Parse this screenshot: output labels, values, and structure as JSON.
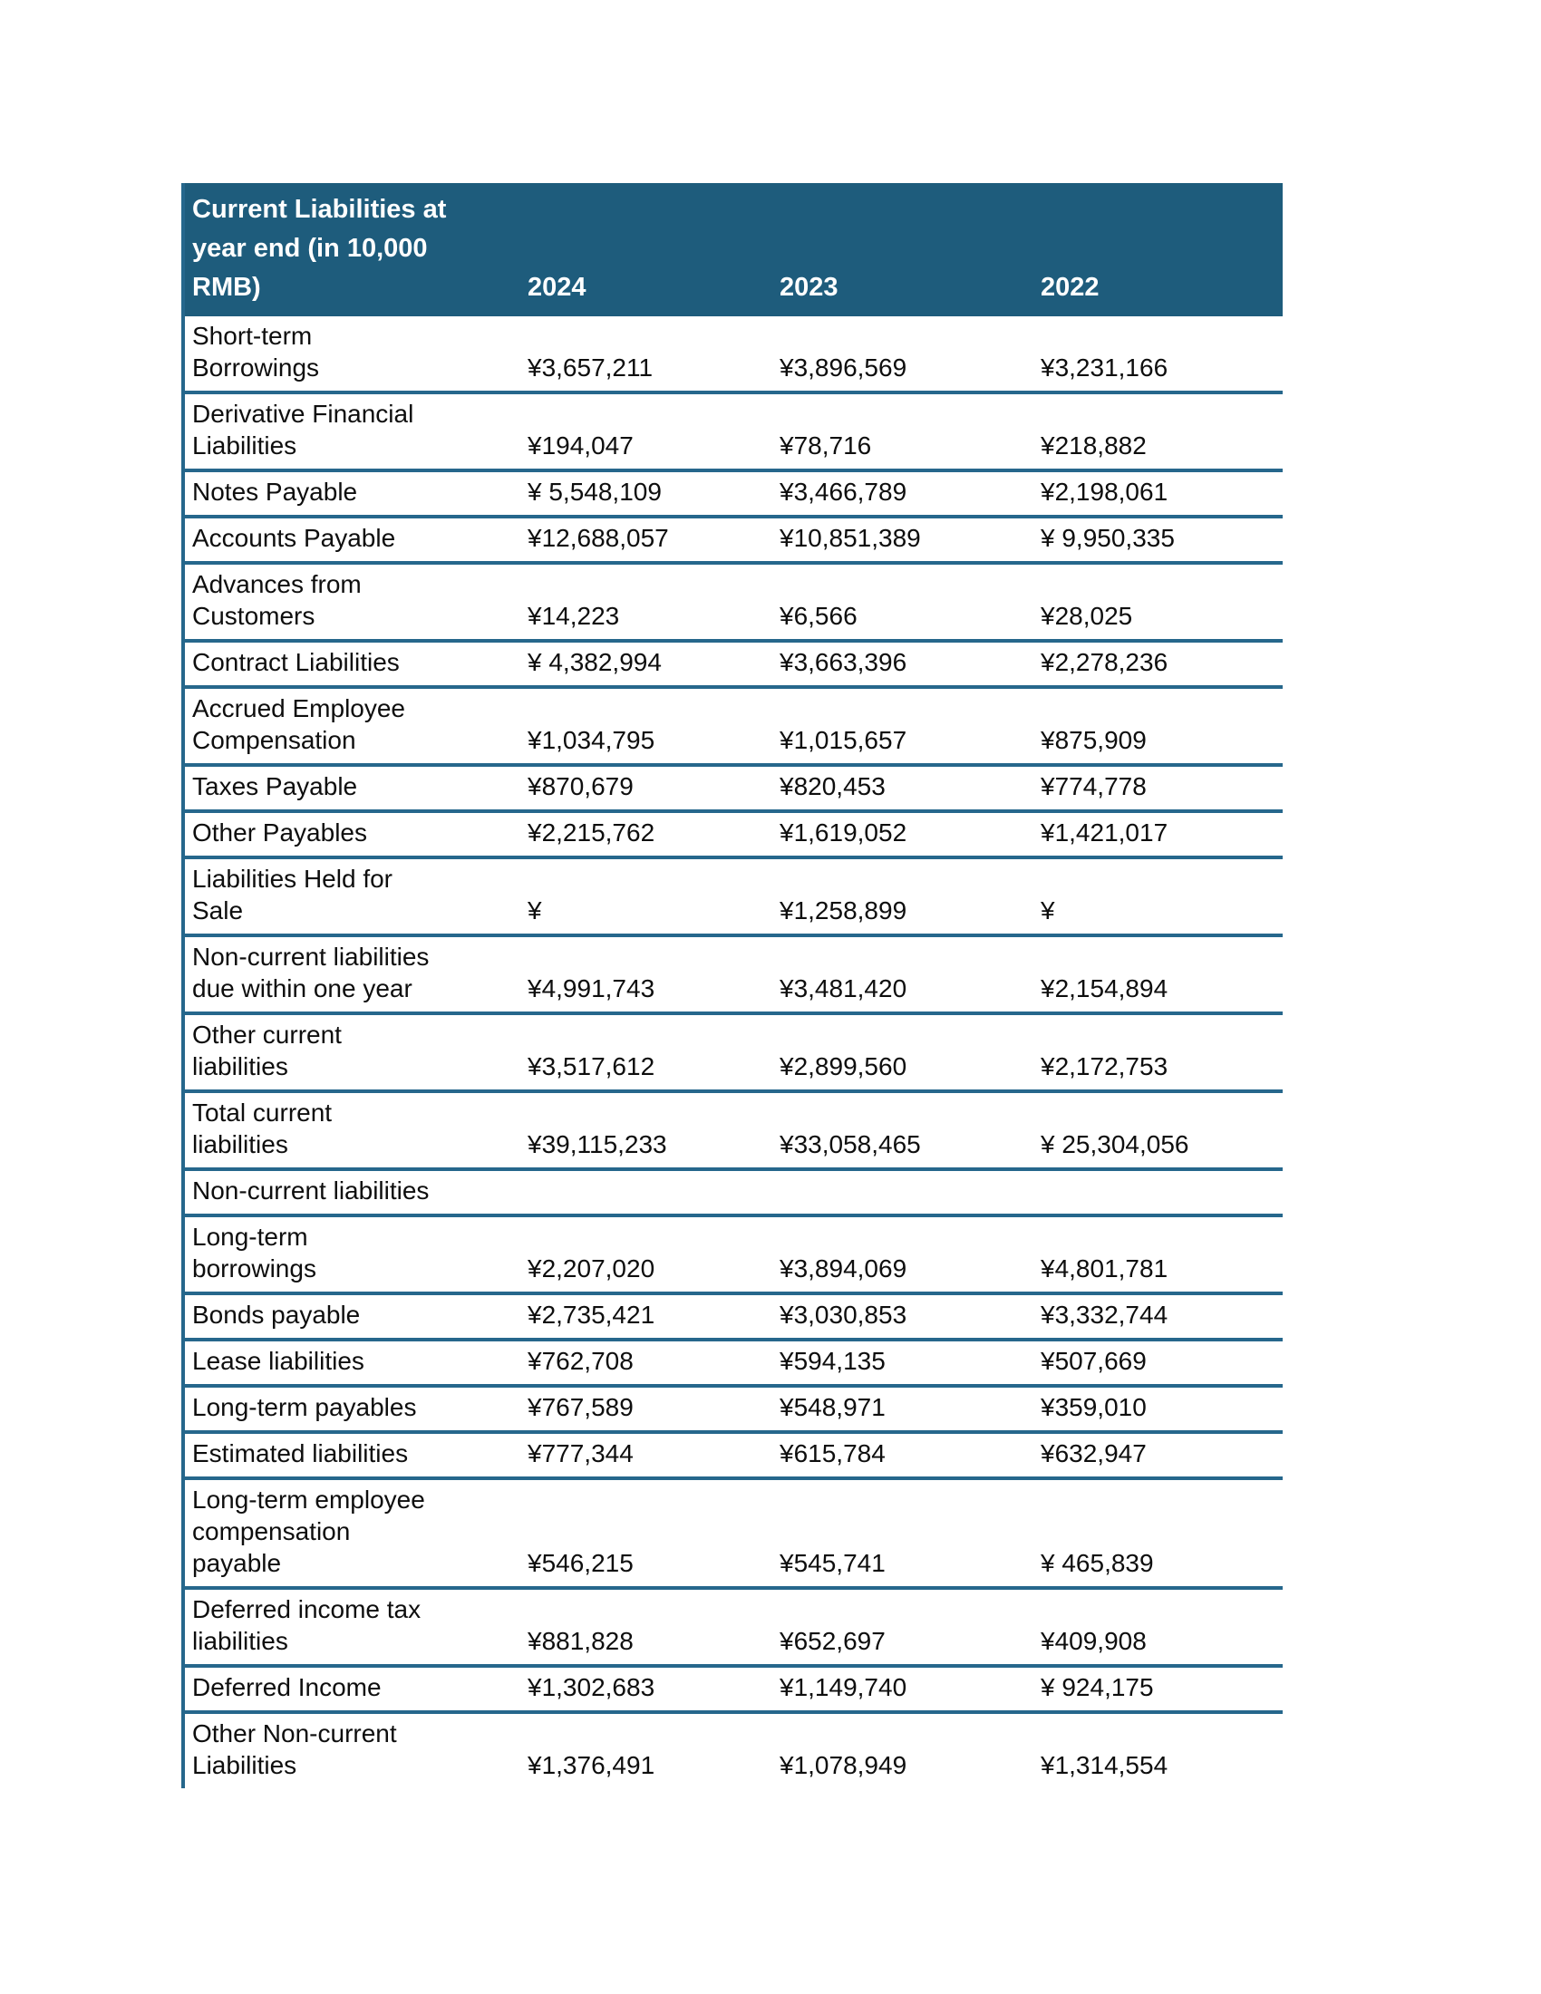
{
  "table": {
    "title": "Current Liabilities at\nyear end (in 10,000\nRMB)",
    "currency_symbol": "¥",
    "columns": [
      "2024",
      "2023",
      "2022"
    ],
    "header_bg_color": "#1e5c7c",
    "border_color": "#26678c",
    "rows": [
      {
        "label": "Short-term\nBorrowings",
        "values": [
          "¥3,657,211",
          "¥3,896,569",
          "¥3,231,166"
        ]
      },
      {
        "label": "Derivative Financial\nLiabilities",
        "values": [
          "¥194,047",
          "¥78,716",
          "¥218,882"
        ]
      },
      {
        "label": "Notes Payable",
        "values": [
          "¥ 5,548,109",
          "¥3,466,789",
          "¥2,198,061"
        ]
      },
      {
        "label": "Accounts Payable",
        "values": [
          "¥12,688,057",
          "¥10,851,389",
          "¥ 9,950,335"
        ]
      },
      {
        "label": "Advances from\nCustomers",
        "values": [
          "¥14,223",
          "¥6,566",
          "¥28,025"
        ]
      },
      {
        "label": "Contract Liabilities",
        "values": [
          "¥ 4,382,994",
          "¥3,663,396",
          "¥2,278,236"
        ]
      },
      {
        "label": "Accrued Employee\nCompensation",
        "values": [
          "¥1,034,795",
          "¥1,015,657",
          "¥875,909"
        ]
      },
      {
        "label": "Taxes Payable",
        "values": [
          "¥870,679",
          "¥820,453",
          "¥774,778"
        ]
      },
      {
        "label": "Other Payables",
        "values": [
          "¥2,215,762",
          "¥1,619,052",
          "¥1,421,017"
        ]
      },
      {
        "label": "Liabilities Held for\nSale",
        "values": [
          "¥",
          "¥1,258,899",
          "¥"
        ]
      },
      {
        "label": "Non-current liabilities\ndue within one year",
        "values": [
          "¥4,991,743",
          "¥3,481,420",
          "¥2,154,894"
        ]
      },
      {
        "label": "Other current\nliabilities",
        "values": [
          "¥3,517,612",
          "¥2,899,560",
          "¥2,172,753"
        ]
      },
      {
        "label": "Total current\nliabilities",
        "values": [
          "¥39,115,233",
          "¥33,058,465",
          "¥ 25,304,056"
        ]
      },
      {
        "label": "Non-current liabilities",
        "values": [
          "",
          "",
          ""
        ]
      },
      {
        "label": "Long-term\nborrowings",
        "values": [
          "¥2,207,020",
          "¥3,894,069",
          "¥4,801,781"
        ]
      },
      {
        "label": "Bonds payable",
        "values": [
          "¥2,735,421",
          "¥3,030,853",
          "¥3,332,744"
        ]
      },
      {
        "label": "Lease liabilities",
        "values": [
          "¥762,708",
          "¥594,135",
          "¥507,669"
        ]
      },
      {
        "label": "Long-term payables",
        "values": [
          "¥767,589",
          "¥548,971",
          "¥359,010"
        ]
      },
      {
        "label": "Estimated liabilities",
        "values": [
          "¥777,344",
          "¥615,784",
          "¥632,947"
        ]
      },
      {
        "label": "Long-term employee\ncompensation\npayable",
        "values": [
          "¥546,215",
          "¥545,741",
          "¥ 465,839"
        ]
      },
      {
        "label": "Deferred income tax\nliabilities",
        "values": [
          "¥881,828",
          "¥652,697",
          "¥409,908"
        ]
      },
      {
        "label": "Deferred Income",
        "values": [
          "¥1,302,683",
          "¥1,149,740",
          "¥ 924,175"
        ]
      },
      {
        "label": "Other Non-current\nLiabilities",
        "values": [
          "¥1,376,491",
          "¥1,078,949",
          "¥1,314,554"
        ]
      }
    ]
  }
}
